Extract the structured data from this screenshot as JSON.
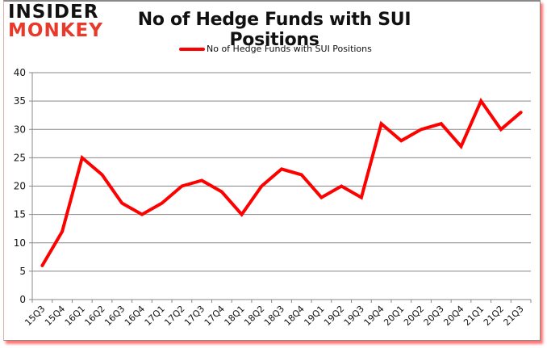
{
  "logo": {
    "line1": "INSIDER",
    "line2": "MONKEY"
  },
  "colors": {
    "series": "#ff0000",
    "grid": "#888888",
    "logo_accent": "#e8392a"
  },
  "chart_data": {
    "type": "line",
    "title": "No of Hedge Funds with SUI Positions",
    "xlabel": "",
    "ylabel": "",
    "ylim": [
      0,
      40
    ],
    "yticks": [
      0,
      5,
      10,
      15,
      20,
      25,
      30,
      35,
      40
    ],
    "grid": true,
    "legend_position": "top",
    "categories": [
      "15Q3",
      "15Q4",
      "16Q1",
      "16Q2",
      "16Q3",
      "16Q4",
      "17Q1",
      "17Q2",
      "17Q3",
      "17Q4",
      "18Q1",
      "18Q2",
      "18Q3",
      "18Q4",
      "19Q1",
      "19Q2",
      "19Q3",
      "19Q4",
      "20Q1",
      "20Q2",
      "20Q3",
      "20Q4",
      "21Q1",
      "21Q2",
      "21Q3"
    ],
    "series": [
      {
        "name": "No of Hedge Funds with SUI Positions",
        "values": [
          6,
          12,
          25,
          22,
          17,
          15,
          17,
          20,
          21,
          19,
          15,
          20,
          23,
          22,
          18,
          20,
          18,
          31,
          28,
          30,
          31,
          27,
          35,
          30,
          33
        ]
      }
    ]
  }
}
